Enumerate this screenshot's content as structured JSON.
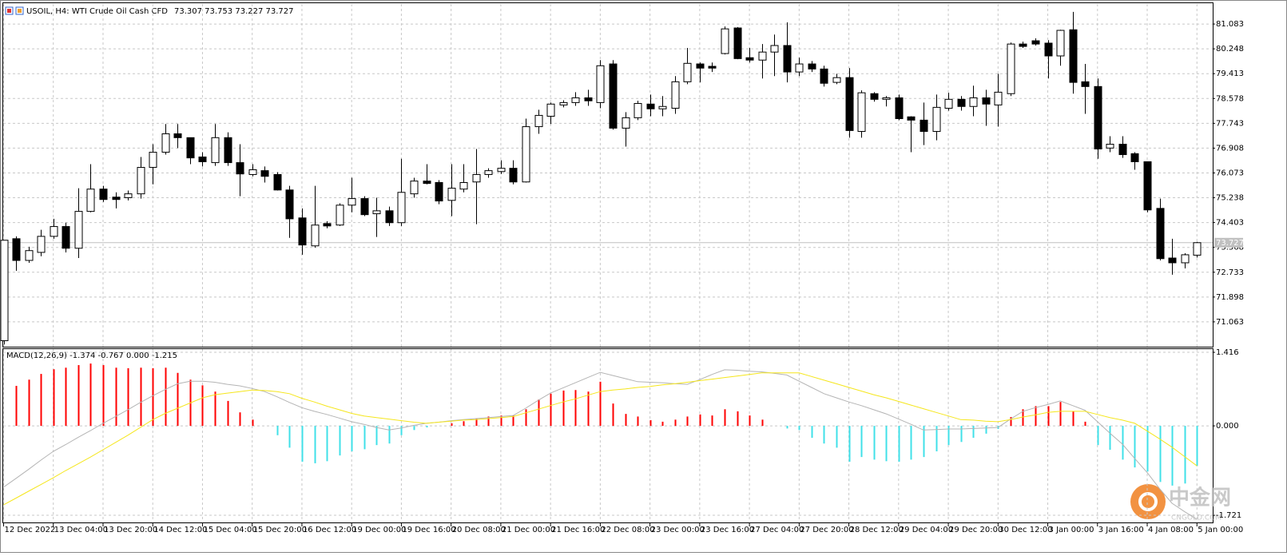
{
  "chart_data": [
    {
      "type": "candlestick",
      "title": "USOIL, H4:  WTI Crude Oil Cash CFD",
      "subtitle": "73.307 73.753 73.227 73.727",
      "categories": [
        "12 Dec 2022",
        null,
        null,
        null,
        "13 Dec 04:00",
        null,
        null,
        null,
        "13 Dec 20:00",
        null,
        null,
        null,
        "14 Dec 12:00",
        null,
        null,
        null,
        "15 Dec 04:00",
        null,
        null,
        null,
        "15 Dec 20:00",
        null,
        null,
        null,
        "16 Dec 12:00",
        null,
        null,
        null,
        "19 Dec 00:00",
        null,
        null,
        null,
        "19 Dec 16:00",
        null,
        null,
        null,
        "20 Dec 08:00",
        null,
        null,
        null,
        "21 Dec 00:00",
        null,
        null,
        null,
        "21 Dec 16:00",
        null,
        null,
        null,
        "22 Dec 08:00",
        null,
        null,
        null,
        "23 Dec 00:00",
        null,
        null,
        null,
        "23 Dec 16:00",
        null,
        null,
        null,
        "27 Dec 04:00",
        null,
        null,
        null,
        "27 Dec 20:00",
        null,
        null,
        null,
        "28 Dec 12:00",
        null,
        null,
        null,
        "29 Dec 04:00",
        null,
        null,
        null,
        "29 Dec 20:00",
        null,
        null,
        null,
        "30 Dec 12:00",
        null,
        null,
        null,
        "3 Jan 00:00",
        null,
        null,
        null,
        "3 Jan 16:00",
        null,
        null,
        null,
        "4 Jan 08:00",
        null,
        null,
        null,
        "5 Jan 00:00"
      ],
      "open": [
        70.43,
        73.86,
        73.13,
        73.4,
        73.94,
        74.27,
        73.54,
        74.78,
        75.53,
        75.26,
        75.24,
        75.37,
        76.26,
        76.77,
        77.39,
        77.26,
        76.61,
        76.42,
        77.26,
        76.42,
        76.02,
        76.15,
        76.02,
        75.5,
        74.56,
        73.62,
        74.37,
        74.32,
        74.99,
        75.21,
        74.7,
        74.8,
        74.4,
        75.37,
        75.8,
        75.75,
        75.15,
        75.53,
        75.77,
        76.02,
        76.12,
        76.23,
        75.77,
        77.63,
        77.98,
        78.36,
        78.44,
        78.6,
        78.44,
        79.74,
        77.58,
        77.93,
        78.39,
        78.23,
        78.25,
        79.14,
        79.74,
        79.66,
        80.09,
        80.95,
        79.95,
        79.87,
        80.14,
        80.36,
        79.47,
        79.74,
        79.57,
        79.12,
        79.28,
        77.47,
        78.74,
        78.55,
        78.6,
        77.96,
        77.85,
        77.47,
        78.25,
        78.55,
        78.31,
        78.6,
        78.36,
        78.74,
        80.41,
        80.52,
        80.44,
        80.01,
        80.89,
        79.14,
        78.98,
        76.91,
        77.04,
        76.72,
        76.45,
        74.88,
        73.21,
        73.05,
        73.307
      ],
      "high": [
        73.81,
        73.94,
        73.59,
        74.16,
        74.53,
        74.4,
        75.56,
        76.37,
        75.64,
        75.42,
        75.48,
        76.61,
        77.04,
        77.72,
        77.72,
        77.26,
        76.77,
        77.72,
        77.44,
        77.04,
        76.37,
        76.29,
        76.1,
        75.64,
        74.88,
        75.64,
        74.45,
        75.05,
        75.91,
        75.29,
        75.24,
        74.94,
        76.55,
        75.91,
        76.37,
        75.83,
        76.37,
        76.37,
        76.88,
        76.23,
        76.5,
        76.5,
        77.9,
        78.2,
        78.44,
        78.52,
        78.79,
        78.87,
        79.87,
        79.87,
        78.12,
        78.5,
        78.71,
        78.66,
        79.33,
        80.28,
        79.79,
        79.79,
        81.0,
        80.98,
        80.28,
        80.41,
        80.73,
        81.14,
        79.95,
        79.84,
        79.68,
        79.41,
        79.6,
        78.85,
        78.79,
        78.66,
        78.71,
        77.98,
        78.44,
        78.71,
        78.77,
        78.66,
        79.01,
        78.87,
        79.41,
        80.46,
        80.49,
        80.6,
        80.54,
        80.89,
        81.49,
        79.74,
        79.25,
        77.31,
        77.31,
        76.77,
        76.45,
        75.21,
        73.86,
        73.37,
        73.753
      ],
      "low": [
        70.3,
        72.78,
        73.05,
        73.27,
        73.86,
        73.4,
        73.21,
        74.75,
        75.1,
        74.88,
        75.15,
        75.21,
        75.69,
        76.69,
        76.91,
        76.37,
        76.29,
        76.31,
        76.31,
        75.29,
        75.96,
        75.75,
        75.48,
        73.89,
        73.32,
        73.56,
        74.21,
        74.29,
        74.75,
        74.62,
        73.92,
        74.29,
        74.29,
        75.24,
        75.69,
        75.02,
        74.62,
        75.42,
        74.35,
        75.91,
        76.04,
        75.69,
        75.75,
        77.39,
        77.72,
        78.28,
        78.33,
        78.33,
        78.25,
        77.53,
        76.96,
        77.85,
        77.98,
        77.98,
        78.06,
        79.06,
        79.12,
        79.47,
        80.06,
        79.9,
        79.79,
        79.25,
        79.33,
        79.12,
        79.33,
        79.47,
        78.98,
        79.06,
        77.26,
        77.26,
        78.47,
        78.31,
        77.85,
        76.77,
        77.01,
        77.17,
        78.17,
        78.17,
        77.98,
        77.66,
        77.63,
        78.66,
        80.28,
        80.36,
        79.25,
        79.68,
        78.74,
        78.06,
        76.55,
        76.77,
        76.58,
        76.18,
        74.75,
        73.13,
        72.65,
        72.86,
        73.227
      ],
      "close": [
        73.81,
        73.13,
        73.46,
        73.94,
        74.27,
        73.54,
        74.78,
        75.53,
        75.18,
        75.18,
        75.37,
        76.26,
        76.77,
        77.39,
        77.26,
        76.58,
        76.45,
        77.26,
        76.42,
        76.04,
        76.18,
        75.96,
        75.5,
        74.53,
        73.65,
        74.32,
        74.29,
        74.99,
        75.21,
        74.67,
        74.8,
        74.4,
        75.42,
        75.8,
        75.72,
        75.13,
        75.56,
        75.75,
        76.02,
        76.15,
        76.23,
        75.77,
        77.63,
        78.01,
        78.39,
        78.44,
        78.6,
        78.5,
        79.68,
        77.58,
        77.93,
        78.41,
        78.23,
        78.31,
        79.14,
        79.76,
        79.6,
        79.6,
        80.92,
        79.92,
        79.87,
        80.14,
        80.36,
        79.47,
        79.74,
        79.57,
        79.09,
        79.28,
        77.5,
        78.77,
        78.55,
        78.6,
        77.9,
        77.85,
        77.47,
        78.28,
        78.55,
        78.31,
        78.6,
        78.39,
        78.79,
        80.41,
        80.33,
        80.41,
        80.01,
        80.87,
        79.12,
        78.98,
        76.88,
        77.04,
        76.69,
        76.45,
        74.83,
        73.19,
        73.05,
        73.32,
        73.727
      ],
      "up_color": "#ffffff",
      "down_color": "#000000",
      "outline_color": "#000000",
      "ylim": [
        70.254,
        81.757
      ],
      "yticks": [
        81.083,
        80.248,
        79.413,
        78.578,
        77.743,
        76.908,
        76.073,
        75.238,
        74.403,
        73.568,
        72.733,
        71.898,
        71.063
      ],
      "grid": true,
      "last_price": 73.727
    },
    {
      "type": "macd",
      "title": "MACD(12,26,9) -1.374 -0.767 0.000 -1.215",
      "ylim": [
        -1.844,
        1.478
      ],
      "yticks": [
        1.416,
        {
          "value": 0,
          "label": "0.000"
        },
        -1.721
      ],
      "series": [
        {
          "type": "histogram",
          "up_color": "#ff0000",
          "down_color": "#40e0e8",
          "values": [
            null,
            0.77,
            0.89,
            1.0,
            1.09,
            1.12,
            1.17,
            1.2,
            1.17,
            1.12,
            1.11,
            1.12,
            1.11,
            1.12,
            1.02,
            0.89,
            0.78,
            0.66,
            0.48,
            0.26,
            0.12,
            0,
            -0.18,
            -0.42,
            -0.69,
            -0.72,
            -0.68,
            -0.57,
            -0.49,
            -0.45,
            -0.37,
            -0.34,
            -0.18,
            -0.08,
            -0.03,
            0,
            0.05,
            0.09,
            0.14,
            0.18,
            0.2,
            0.2,
            0.32,
            0.51,
            0.62,
            0.68,
            0.69,
            0.66,
            0.85,
            0.43,
            0.23,
            0.18,
            0.11,
            0.08,
            0.12,
            0.18,
            0.22,
            0.2,
            0.32,
            0.28,
            0.2,
            0.12,
            0,
            -0.05,
            -0.08,
            -0.23,
            -0.34,
            -0.42,
            -0.69,
            -0.6,
            -0.65,
            -0.68,
            -0.69,
            -0.65,
            -0.6,
            -0.49,
            -0.37,
            -0.31,
            -0.23,
            -0.15,
            -0.06,
            0.17,
            0.32,
            0.38,
            0.38,
            0.46,
            0.28,
            0.08,
            -0.37,
            -0.46,
            -0.65,
            -0.8,
            -0.88,
            -1.08,
            -1.15,
            -1.11,
            -0.77
          ]
        },
        {
          "type": "line",
          "color": "#b4b4b4",
          "values": [
            -1.18,
            -1.01,
            -0.84,
            -0.66,
            -0.49,
            -0.36,
            -0.22,
            -0.09,
            0.05,
            0.18,
            0.31,
            0.45,
            0.58,
            0.7,
            0.81,
            0.86,
            0.86,
            0.84,
            0.8,
            0.77,
            0.72,
            0.66,
            0.56,
            0.45,
            0.35,
            0.28,
            0.22,
            0.15,
            0.08,
            0.03,
            -0.03,
            -0.08,
            -0.04,
            0.01,
            0.05,
            0.07,
            0.1,
            0.12,
            0.14,
            0.16,
            0.18,
            0.2,
            0.34,
            0.49,
            0.63,
            0.73,
            0.83,
            0.93,
            1.03,
            0.97,
            0.91,
            0.85,
            0.84,
            0.83,
            0.81,
            0.8,
            0.89,
            0.99,
            1.08,
            1.07,
            1.05,
            1.04,
            1.01,
            0.98,
            0.86,
            0.74,
            0.62,
            0.54,
            0.46,
            0.39,
            0.31,
            0.23,
            0.13,
            0.03,
            -0.08,
            -0.07,
            -0.06,
            -0.06,
            -0.05,
            -0.04,
            -0.03,
            0.13,
            0.28,
            0.35,
            0.41,
            0.48,
            0.39,
            0.3,
            0.08,
            -0.14,
            -0.35,
            -0.63,
            -0.9,
            -1.21,
            -1.49,
            -1.65,
            -1.8
          ]
        },
        {
          "type": "line",
          "color": "#f5e61c",
          "values": [
            -1.52,
            -1.39,
            -1.26,
            -1.13,
            -1.0,
            -0.86,
            -0.73,
            -0.6,
            -0.46,
            -0.32,
            -0.18,
            -0.03,
            0.12,
            0.24,
            0.34,
            0.44,
            0.54,
            0.6,
            0.63,
            0.66,
            0.69,
            0.68,
            0.66,
            0.62,
            0.53,
            0.46,
            0.38,
            0.31,
            0.24,
            0.19,
            0.16,
            0.13,
            0.1,
            0.07,
            0.05,
            0.07,
            0.09,
            0.11,
            0.12,
            0.14,
            0.16,
            0.18,
            0.25,
            0.32,
            0.39,
            0.46,
            0.52,
            0.59,
            0.66,
            0.69,
            0.71,
            0.74,
            0.76,
            0.79,
            0.81,
            0.84,
            0.87,
            0.9,
            0.93,
            0.96,
            0.99,
            1.02,
            1.02,
            1.02,
            1.02,
            0.95,
            0.88,
            0.81,
            0.74,
            0.67,
            0.6,
            0.54,
            0.47,
            0.4,
            0.33,
            0.26,
            0.19,
            0.12,
            0.11,
            0.09,
            0.08,
            0.12,
            0.17,
            0.21,
            0.26,
            0.28,
            0.28,
            0.28,
            0.22,
            0.16,
            0.11,
            0.05,
            -0.1,
            -0.25,
            -0.41,
            -0.59,
            -0.77
          ]
        }
      ]
    }
  ],
  "watermark": {
    "text": "中金网",
    "subtext": "CNGOLD.COM"
  }
}
